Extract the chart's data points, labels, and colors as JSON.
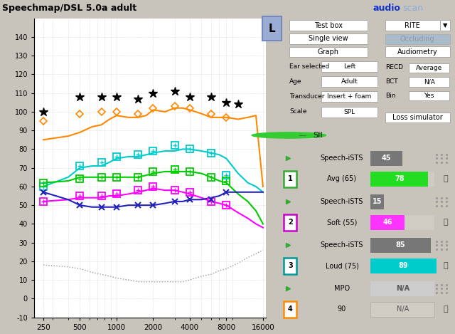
{
  "title": "Speechmap/DSL 5.0a adult",
  "bg_color": "#c8c4bc",
  "plot_bg": "#ffffff",
  "freqs": [
    250,
    400,
    500,
    630,
    750,
    875,
    1000,
    1250,
    1500,
    1750,
    2000,
    2500,
    3000,
    3500,
    4000,
    5000,
    6000,
    7000,
    8000,
    10000,
    12000,
    14000,
    16000
  ],
  "orange_y": [
    85,
    87,
    89,
    92,
    93,
    96,
    98,
    97,
    97,
    98,
    101,
    100,
    102,
    102,
    101,
    99,
    97,
    97,
    97,
    96,
    97,
    98,
    60
  ],
  "cyan_y": [
    60,
    65,
    70,
    71,
    71,
    73,
    75,
    76,
    76,
    77,
    78,
    79,
    79,
    80,
    80,
    79,
    78,
    77,
    75,
    67,
    62,
    60,
    57
  ],
  "green_y": [
    62,
    63,
    65,
    65,
    65,
    65,
    65,
    65,
    65,
    66,
    67,
    68,
    68,
    68,
    68,
    67,
    65,
    63,
    62,
    56,
    52,
    47,
    40
  ],
  "magenta_y": [
    52,
    53,
    54,
    54,
    54,
    55,
    55,
    56,
    57,
    58,
    59,
    58,
    58,
    57,
    56,
    54,
    52,
    51,
    50,
    46,
    43,
    40,
    38
  ],
  "blue_y": [
    57,
    53,
    50,
    49,
    49,
    49,
    49,
    50,
    50,
    50,
    50,
    51,
    52,
    52,
    53,
    53,
    54,
    55,
    57,
    57,
    57,
    57,
    57
  ],
  "dotted_y": [
    18,
    17,
    16,
    14,
    13,
    12,
    11,
    10,
    9,
    9,
    9,
    9,
    9,
    9,
    10,
    12,
    13,
    15,
    16,
    19,
    22,
    24,
    26
  ],
  "mk_f": [
    250,
    500,
    750,
    1000,
    1500,
    2000,
    3000,
    4000,
    6000,
    8000
  ],
  "orange_mk_y": [
    95,
    99,
    100,
    100,
    99,
    102,
    103,
    102,
    99,
    97
  ],
  "cyan_mk_y": [
    60,
    71,
    73,
    76,
    77,
    79,
    82,
    80,
    78,
    66
  ],
  "green_mk_y": [
    62,
    64,
    65,
    65,
    65,
    68,
    69,
    68,
    65,
    63
  ],
  "magenta_mk_y": [
    52,
    55,
    55,
    56,
    58,
    60,
    58,
    57,
    52,
    50
  ],
  "blue_mk_y": [
    57,
    50,
    49,
    49,
    50,
    50,
    52,
    53,
    53,
    57
  ],
  "asterisk_x": [
    250,
    500,
    750,
    1000,
    1500,
    2000,
    3000,
    4000,
    6000,
    8000,
    10000
  ],
  "asterisk_y": [
    100,
    108,
    108,
    108,
    107,
    110,
    111,
    108,
    108,
    105,
    104
  ],
  "xticks": [
    250,
    500,
    1000,
    2000,
    4000,
    8000,
    16000
  ],
  "xticklabels": [
    "250",
    "500",
    "1000",
    "2000",
    "4000",
    "8000",
    "16000"
  ],
  "yticks": [
    -10,
    0,
    10,
    20,
    30,
    40,
    50,
    60,
    70,
    80,
    90,
    100,
    110,
    120,
    130,
    140
  ]
}
